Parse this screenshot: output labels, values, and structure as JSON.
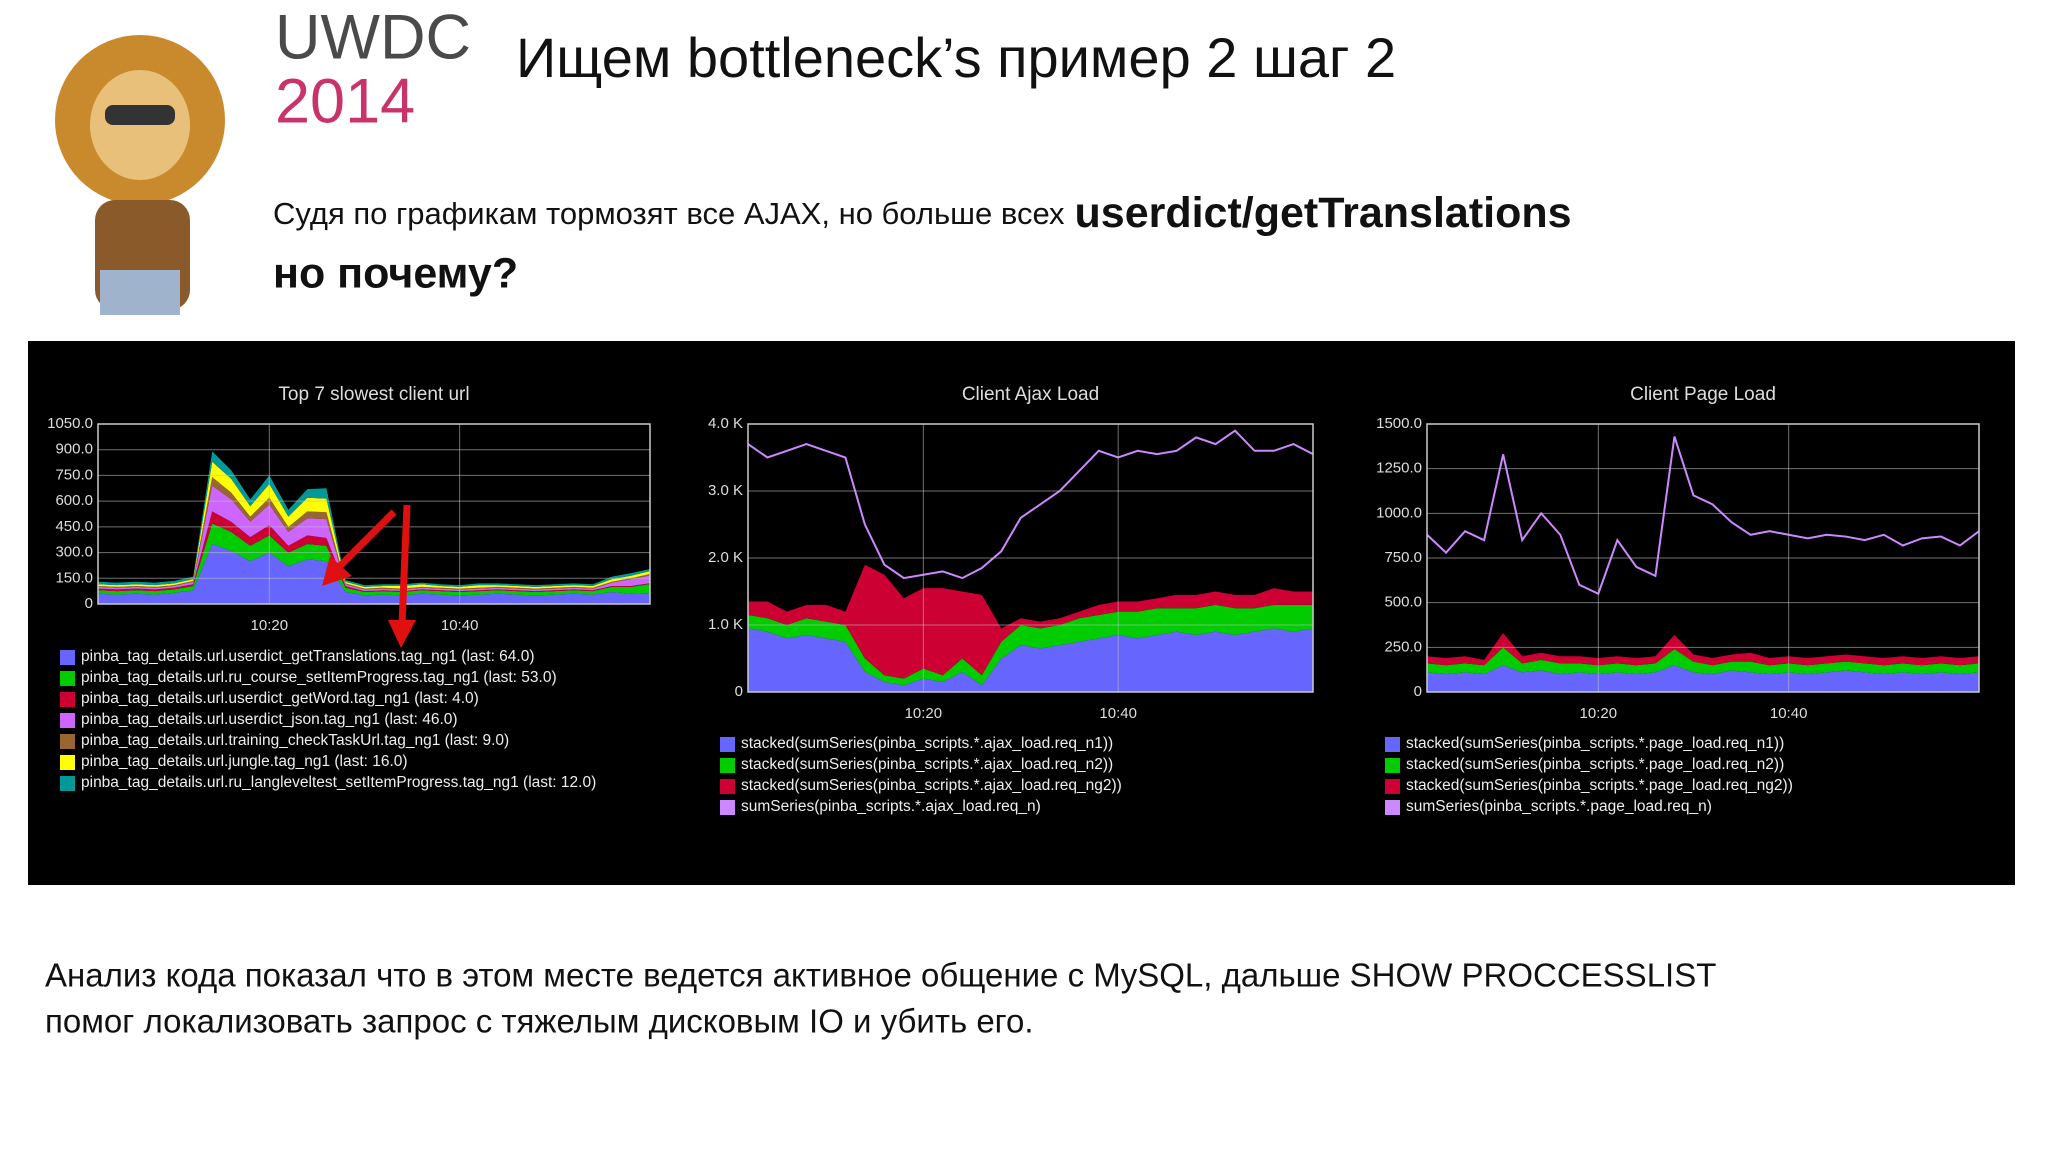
{
  "header": {
    "logo": [
      "UWDC",
      "2014"
    ],
    "title": "Ищем bottleneck’s пример 2 шаг 2",
    "subtitle": {
      "text": "Судя по графикам тормозят все AJAX, но больше всех",
      "emphasis": "userdict/getTranslations",
      "question": "но почему?"
    }
  },
  "chart_data": [
    {
      "type": "area",
      "stacked": true,
      "title": "Top 7 slowest client url",
      "grid": true,
      "x": [
        "10:02",
        "10:04",
        "10:06",
        "10:08",
        "10:10",
        "10:12",
        "10:14",
        "10:16",
        "10:18",
        "10:20",
        "10:22",
        "10:24",
        "10:26",
        "10:28",
        "10:30",
        "10:32",
        "10:34",
        "10:36",
        "10:38",
        "10:40",
        "10:42",
        "10:44",
        "10:46",
        "10:48",
        "10:50",
        "10:52",
        "10:54",
        "10:56",
        "10:58",
        "11:00"
      ],
      "xticks": [
        "10:20",
        "10:40"
      ],
      "ylim": [
        0,
        1050
      ],
      "yticks": [
        0,
        {
          "value": 150,
          "label": "150.0"
        },
        {
          "value": 300,
          "label": "300.0"
        },
        {
          "value": 450,
          "label": "450.0"
        },
        {
          "value": 600,
          "label": "600.0"
        },
        {
          "value": 750,
          "label": "750.0"
        },
        {
          "value": 900,
          "label": "900.0"
        },
        {
          "value": 1050,
          "label": "1050.0"
        }
      ],
      "series": [
        {
          "name": "pinba_tag_details.url.userdict_getTranslations.tag_ng1 (last: 64.0)",
          "color": "#6666ff",
          "values": [
            60,
            55,
            60,
            55,
            65,
            80,
            350,
            310,
            250,
            300,
            220,
            260,
            250,
            70,
            50,
            55,
            50,
            60,
            55,
            50,
            55,
            60,
            55,
            50,
            55,
            60,
            55,
            70,
            60,
            64
          ]
        },
        {
          "name": "pinba_tag_details.url.ru_course_setItemProgress.tag_ng1 (last: 53.0)",
          "color": "#00cc00",
          "values": [
            20,
            20,
            20,
            20,
            20,
            25,
            120,
            110,
            90,
            100,
            80,
            90,
            90,
            25,
            20,
            20,
            20,
            20,
            20,
            20,
            20,
            20,
            20,
            20,
            20,
            20,
            20,
            30,
            40,
            53
          ]
        },
        {
          "name": "pinba_tag_details.url.userdict_getWord.tag_ng1 (last: 4.0)",
          "color": "#cc0033",
          "values": [
            10,
            10,
            10,
            10,
            10,
            10,
            70,
            60,
            50,
            60,
            40,
            50,
            45,
            10,
            5,
            5,
            5,
            5,
            5,
            5,
            5,
            5,
            5,
            5,
            5,
            5,
            5,
            5,
            5,
            4
          ]
        },
        {
          "name": "pinba_tag_details.url.userdict_json.tag_ng1 (last: 46.0)",
          "color": "#cc66ff",
          "values": [
            10,
            10,
            10,
            10,
            10,
            15,
            150,
            130,
            90,
            120,
            80,
            100,
            110,
            10,
            10,
            10,
            10,
            10,
            10,
            10,
            10,
            10,
            10,
            10,
            10,
            10,
            10,
            20,
            40,
            46
          ]
        },
        {
          "name": "pinba_tag_details.url.training_checkTaskUrl.tag_ng1 (last: 9.0)",
          "color": "#996633",
          "values": [
            5,
            5,
            5,
            5,
            5,
            5,
            50,
            40,
            30,
            40,
            30,
            40,
            40,
            5,
            5,
            5,
            5,
            5,
            5,
            5,
            5,
            5,
            5,
            5,
            5,
            5,
            5,
            5,
            5,
            9
          ]
        },
        {
          "name": "pinba_tag_details.url.jungle.tag_ng1 (last: 16.0)",
          "color": "#ffff00",
          "values": [
            10,
            10,
            10,
            10,
            10,
            10,
            90,
            80,
            60,
            80,
            60,
            80,
            80,
            10,
            10,
            10,
            15,
            15,
            10,
            10,
            15,
            10,
            10,
            10,
            10,
            10,
            10,
            15,
            15,
            16
          ]
        },
        {
          "name": "pinba_tag_details.url.ru_langleveltest_setItemProgress.tag_ng1 (last: 12.0)",
          "color": "#009999",
          "values": [
            15,
            15,
            15,
            15,
            15,
            15,
            60,
            50,
            40,
            50,
            40,
            50,
            60,
            10,
            10,
            10,
            10,
            10,
            10,
            10,
            10,
            10,
            10,
            10,
            10,
            10,
            10,
            15,
            15,
            12
          ]
        }
      ]
    },
    {
      "type": "area",
      "stacked": true,
      "title": "Client Ajax Load",
      "grid": true,
      "x": [
        "10:02",
        "10:04",
        "10:06",
        "10:08",
        "10:10",
        "10:12",
        "10:14",
        "10:16",
        "10:18",
        "10:20",
        "10:22",
        "10:24",
        "10:26",
        "10:28",
        "10:30",
        "10:32",
        "10:34",
        "10:36",
        "10:38",
        "10:40",
        "10:42",
        "10:44",
        "10:46",
        "10:48",
        "10:50",
        "10:52",
        "10:54",
        "10:56",
        "10:58",
        "11:00"
      ],
      "xticks": [
        "10:20",
        "10:40"
      ],
      "ylim": [
        0,
        4000
      ],
      "yticks": [
        0,
        {
          "value": 1000,
          "label": "1.0 K"
        },
        {
          "value": 2000,
          "label": "2.0 K"
        },
        {
          "value": 3000,
          "label": "3.0 K"
        },
        {
          "value": 4000,
          "label": "4.0 K"
        }
      ],
      "series": [
        {
          "name": "stacked(sumSeries(pinba_scripts.*.ajax_load.req_n1))",
          "color": "#6666ff",
          "values": [
            950,
            900,
            800,
            850,
            800,
            750,
            300,
            150,
            100,
            200,
            150,
            300,
            100,
            500,
            700,
            650,
            700,
            750,
            800,
            850,
            800,
            850,
            900,
            850,
            900,
            850,
            900,
            950,
            900,
            950
          ]
        },
        {
          "name": "stacked(sumSeries(pinba_scripts.*.ajax_load.req_n2))",
          "color": "#00cc00",
          "values": [
            200,
            200,
            200,
            250,
            250,
            250,
            200,
            100,
            100,
            150,
            100,
            200,
            150,
            250,
            300,
            300,
            300,
            350,
            350,
            350,
            400,
            400,
            350,
            400,
            400,
            400,
            350,
            350,
            400,
            350
          ]
        },
        {
          "name": "stacked(sumSeries(pinba_scripts.*.ajax_load.req_ng2))",
          "color": "#cc0033",
          "values": [
            200,
            250,
            200,
            200,
            250,
            200,
            1400,
            1500,
            1200,
            1200,
            1300,
            1000,
            1200,
            200,
            100,
            100,
            100,
            100,
            150,
            150,
            150,
            150,
            200,
            200,
            200,
            200,
            200,
            250,
            200,
            200
          ]
        },
        {
          "name": "sumSeries(pinba_scripts.*.ajax_load.req_n)",
          "color": "#cc88ff",
          "type": "line",
          "values": [
            3700,
            3500,
            3600,
            3700,
            3600,
            3500,
            2500,
            1900,
            1700,
            1750,
            1800,
            1700,
            1850,
            2100,
            2600,
            2800,
            3000,
            3300,
            3600,
            3500,
            3600,
            3550,
            3600,
            3800,
            3700,
            3900,
            3600,
            3600,
            3700,
            3550
          ]
        }
      ]
    },
    {
      "type": "area",
      "stacked": true,
      "title": "Client Page Load",
      "grid": true,
      "x": [
        "10:02",
        "10:04",
        "10:06",
        "10:08",
        "10:10",
        "10:12",
        "10:14",
        "10:16",
        "10:18",
        "10:20",
        "10:22",
        "10:24",
        "10:26",
        "10:28",
        "10:30",
        "10:32",
        "10:34",
        "10:36",
        "10:38",
        "10:40",
        "10:42",
        "10:44",
        "10:46",
        "10:48",
        "10:50",
        "10:52",
        "10:54",
        "10:56",
        "10:58",
        "11:00"
      ],
      "xticks": [
        "10:20",
        "10:40"
      ],
      "ylim": [
        0,
        1500
      ],
      "yticks": [
        0,
        {
          "value": 250,
          "label": "250.0"
        },
        {
          "value": 500,
          "label": "500.0"
        },
        {
          "value": 750,
          "label": "750.0"
        },
        {
          "value": 1000,
          "label": "1000.0"
        },
        {
          "value": 1250,
          "label": "1250.0"
        },
        {
          "value": 1500,
          "label": "1500.0"
        }
      ],
      "series": [
        {
          "name": "stacked(sumSeries(pinba_scripts.*.page_load.req_n1))",
          "color": "#6666ff",
          "values": [
            110,
            100,
            110,
            100,
            150,
            110,
            120,
            100,
            110,
            100,
            110,
            100,
            110,
            150,
            110,
            100,
            120,
            110,
            100,
            110,
            100,
            110,
            120,
            110,
            100,
            110,
            100,
            110,
            100,
            110
          ]
        },
        {
          "name": "stacked(sumSeries(pinba_scripts.*.page_load.req_n2))",
          "color": "#00cc00",
          "values": [
            50,
            50,
            50,
            50,
            100,
            50,
            60,
            60,
            50,
            50,
            50,
            50,
            50,
            90,
            60,
            50,
            50,
            60,
            50,
            50,
            50,
            50,
            50,
            50,
            50,
            50,
            50,
            50,
            50,
            50
          ]
        },
        {
          "name": "stacked(sumSeries(pinba_scripts.*.page_load.req_ng2))",
          "color": "#cc0033",
          "values": [
            40,
            40,
            40,
            30,
            80,
            40,
            40,
            40,
            40,
            40,
            40,
            40,
            40,
            80,
            40,
            40,
            40,
            50,
            40,
            40,
            40,
            40,
            40,
            40,
            40,
            40,
            40,
            40,
            40,
            40
          ]
        },
        {
          "name": "sumSeries(pinba_scripts.*.page_load.req_n)",
          "color": "#cc88ff",
          "type": "line",
          "values": [
            880,
            780,
            900,
            850,
            1330,
            850,
            1000,
            880,
            600,
            550,
            850,
            700,
            650,
            1430,
            1100,
            1050,
            950,
            880,
            900,
            880,
            860,
            880,
            870,
            850,
            880,
            820,
            860,
            870,
            820,
            900
          ]
        }
      ]
    }
  ],
  "footer": {
    "lines": [
      "Анализ кода показал что в этом месте ведется активное общение с MySQL, дальше SHOW PROCCESSLIST",
      "помог локализовать запрос с тяжелым дисковым IO и убить его."
    ]
  }
}
